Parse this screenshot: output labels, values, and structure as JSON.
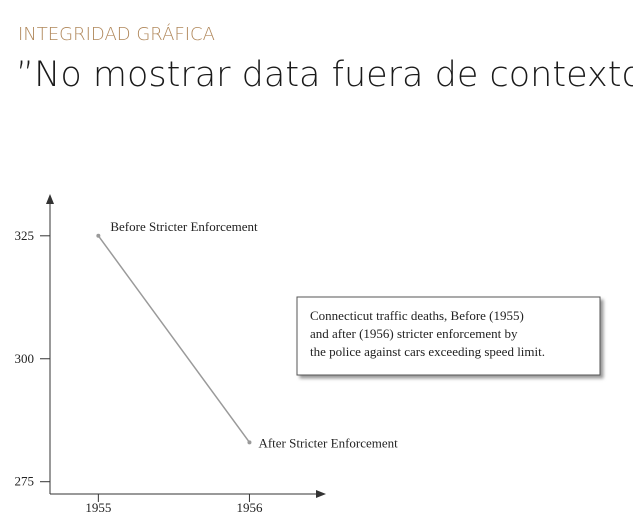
{
  "header": {
    "kicker": "INTEGRIDAD GRÁFICA",
    "title": "”No mostrar data fuera de contexto”"
  },
  "chart_data": {
    "type": "line",
    "x": [
      1955,
      1956
    ],
    "series": [
      {
        "color": "#9a9a9a",
        "values": [
          325,
          283
        ]
      }
    ],
    "point_labels": [
      "Before Stricter Enforcement",
      "After Stricter Enforcement"
    ],
    "annotation": [
      "Connecticut traffic deaths, Before (1955)",
      "and after (1956) stricter enforcement by",
      "the police against cars exceeding speed limit."
    ],
    "xlim": [
      1954.68,
      1956.5
    ],
    "xticks": [
      1955,
      1956
    ],
    "ylim": [
      272.5,
      333.5
    ],
    "yticks": [
      275,
      300,
      325
    ]
  }
}
